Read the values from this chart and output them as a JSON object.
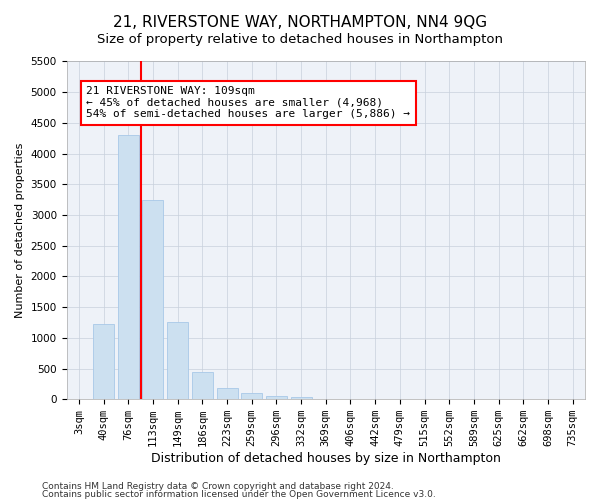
{
  "title": "21, RIVERSTONE WAY, NORTHAMPTON, NN4 9QG",
  "subtitle": "Size of property relative to detached houses in Northampton",
  "xlabel": "Distribution of detached houses by size in Northampton",
  "ylabel": "Number of detached properties",
  "categories": [
    "3sqm",
    "40sqm",
    "76sqm",
    "113sqm",
    "149sqm",
    "186sqm",
    "223sqm",
    "259sqm",
    "296sqm",
    "332sqm",
    "369sqm",
    "406sqm",
    "442sqm",
    "479sqm",
    "515sqm",
    "552sqm",
    "589sqm",
    "625sqm",
    "662sqm",
    "698sqm",
    "735sqm"
  ],
  "values": [
    0,
    1220,
    4300,
    3250,
    1250,
    450,
    180,
    100,
    60,
    30,
    10,
    5,
    0,
    0,
    0,
    0,
    0,
    0,
    0,
    0,
    0
  ],
  "bar_color": "#cce0f0",
  "bar_edgecolor": "#a8c8e8",
  "red_line_index": 3,
  "annotation_text": "21 RIVERSTONE WAY: 109sqm\n← 45% of detached houses are smaller (4,968)\n54% of semi-detached houses are larger (5,886) →",
  "annotation_box_color": "white",
  "annotation_box_edgecolor": "red",
  "ylim": [
    0,
    5500
  ],
  "yticks": [
    0,
    500,
    1000,
    1500,
    2000,
    2500,
    3000,
    3500,
    4000,
    4500,
    5000,
    5500
  ],
  "footer_line1": "Contains HM Land Registry data © Crown copyright and database right 2024.",
  "footer_line2": "Contains public sector information licensed under the Open Government Licence v3.0.",
  "title_fontsize": 11,
  "subtitle_fontsize": 9.5,
  "xlabel_fontsize": 9,
  "ylabel_fontsize": 8,
  "tick_fontsize": 7.5,
  "footer_fontsize": 6.5,
  "annotation_fontsize": 8,
  "background_color": "#ffffff",
  "plot_background_color": "#eef2f8",
  "grid_color": "#c8d0dc"
}
